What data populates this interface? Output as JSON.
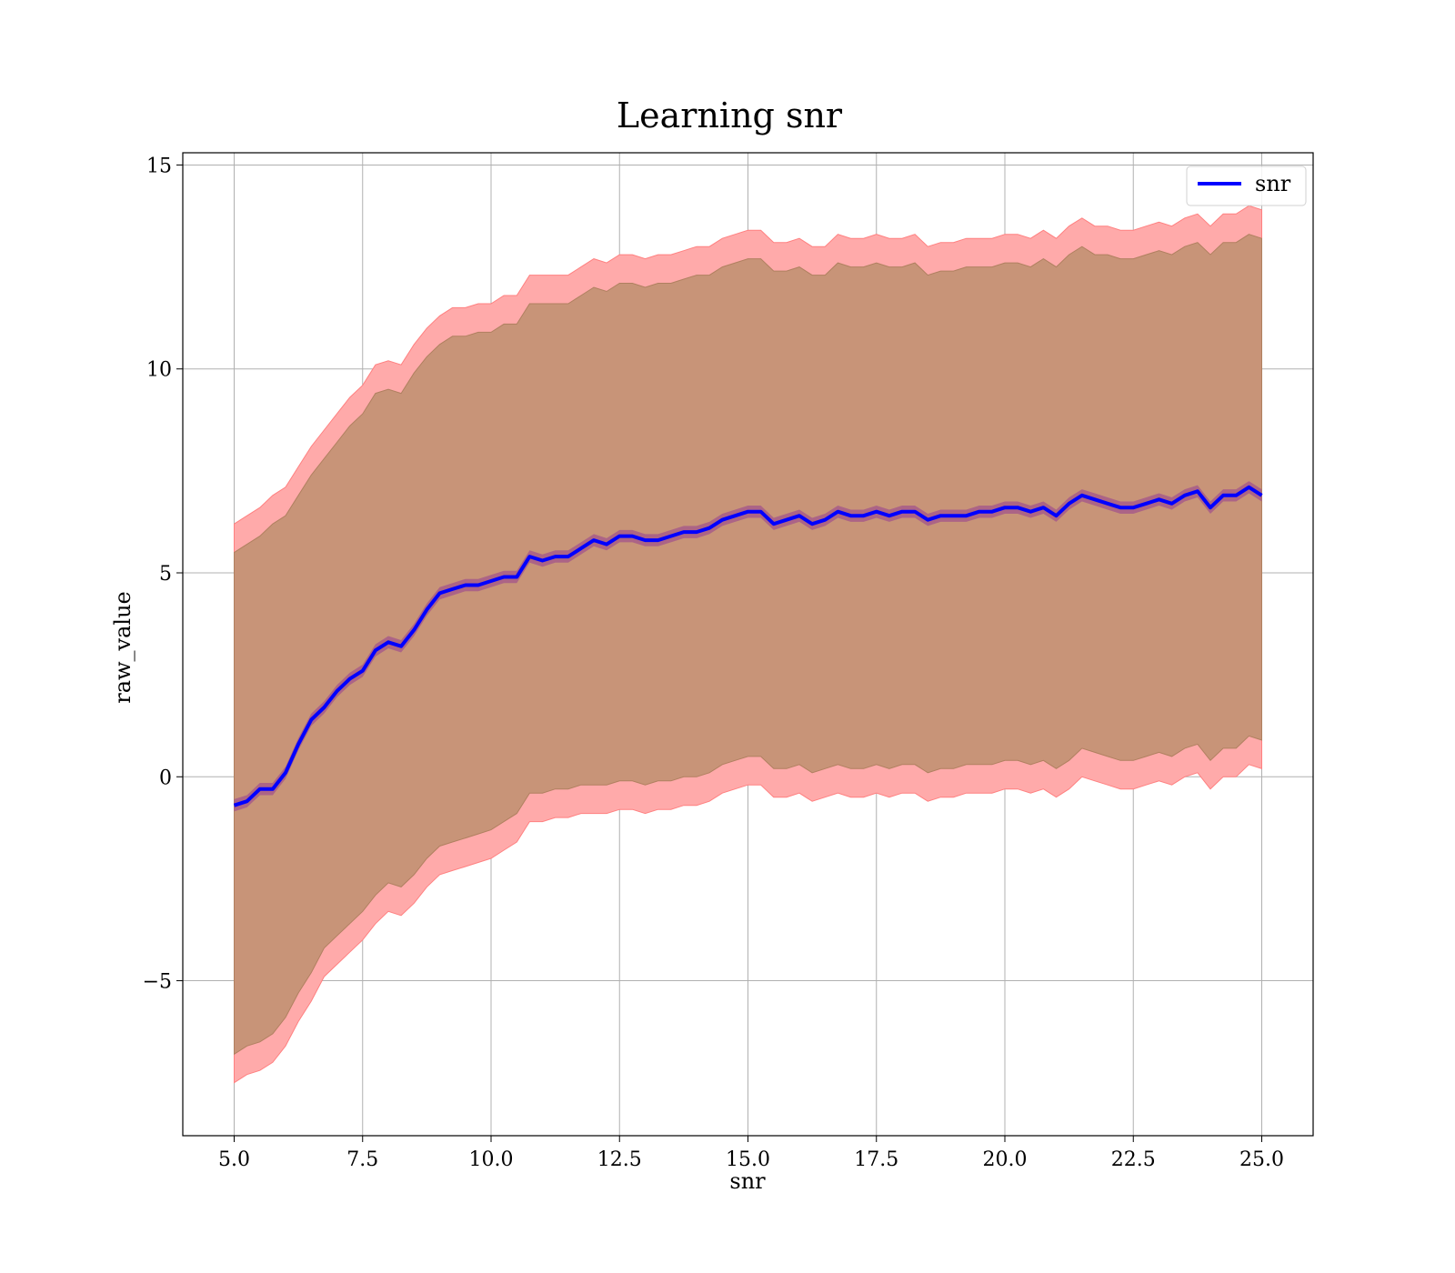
{
  "chart_data": {
    "type": "line",
    "title": "Learning snr",
    "xlabel": "snr",
    "ylabel": "raw_value",
    "xlim": [
      4.0,
      26.0
    ],
    "ylim": [
      -8.8,
      15.3
    ],
    "x_ticks": [
      5.0,
      7.5,
      10.0,
      12.5,
      15.0,
      17.5,
      20.0,
      22.5,
      25.0
    ],
    "x_tick_labels": [
      "5.0",
      "7.5",
      "10.0",
      "12.5",
      "15.0",
      "17.5",
      "20.0",
      "22.5",
      "25.0"
    ],
    "y_ticks": [
      -5,
      0,
      5,
      10,
      15
    ],
    "y_tick_labels": [
      "−5",
      "0",
      "5",
      "10",
      "15"
    ],
    "grid": true,
    "legend": {
      "position": "top-right",
      "entries": [
        {
          "name": "snr",
          "color": "#0000ff"
        }
      ]
    },
    "colors": {
      "line": "#0000ff",
      "outer_band": "#ffaaaa",
      "inner_band": "#c89478",
      "line_band": "#a0508c"
    },
    "x": [
      5.0,
      5.25,
      5.5,
      5.75,
      6.0,
      6.25,
      6.5,
      6.75,
      7.0,
      7.25,
      7.5,
      7.75,
      8.0,
      8.25,
      8.5,
      8.75,
      9.0,
      9.25,
      9.5,
      9.75,
      10.0,
      10.25,
      10.5,
      10.75,
      11.0,
      11.25,
      11.5,
      11.75,
      12.0,
      12.25,
      12.5,
      12.75,
      13.0,
      13.25,
      13.5,
      13.75,
      14.0,
      14.25,
      14.5,
      14.75,
      15.0,
      15.25,
      15.5,
      15.75,
      16.0,
      16.25,
      16.5,
      16.75,
      17.0,
      17.25,
      17.5,
      17.75,
      18.0,
      18.25,
      18.5,
      18.75,
      19.0,
      19.25,
      19.5,
      19.75,
      20.0,
      20.25,
      20.5,
      20.75,
      21.0,
      21.25,
      21.5,
      21.75,
      22.0,
      22.25,
      22.5,
      22.75,
      23.0,
      23.25,
      23.5,
      23.75,
      24.0,
      24.25,
      24.5,
      24.75,
      25.0
    ],
    "series": [
      {
        "name": "snr",
        "values": [
          -0.7,
          -0.6,
          -0.3,
          -0.3,
          0.1,
          0.8,
          1.4,
          1.7,
          2.1,
          2.4,
          2.6,
          3.1,
          3.3,
          3.2,
          3.6,
          4.1,
          4.5,
          4.6,
          4.7,
          4.7,
          4.8,
          4.9,
          4.9,
          5.4,
          5.3,
          5.4,
          5.4,
          5.6,
          5.8,
          5.7,
          5.9,
          5.9,
          5.8,
          5.8,
          5.9,
          6.0,
          6.0,
          6.1,
          6.3,
          6.4,
          6.5,
          6.5,
          6.2,
          6.3,
          6.4,
          6.2,
          6.3,
          6.5,
          6.4,
          6.4,
          6.5,
          6.4,
          6.5,
          6.5,
          6.3,
          6.4,
          6.4,
          6.4,
          6.5,
          6.5,
          6.6,
          6.6,
          6.5,
          6.6,
          6.4,
          6.7,
          6.9,
          6.8,
          6.7,
          6.6,
          6.6,
          6.7,
          6.8,
          6.7,
          6.9,
          7.0,
          6.6,
          6.9,
          6.9,
          7.1,
          6.9
        ],
        "band_lower": [
          -7.5,
          -7.3,
          -7.2,
          -7.0,
          -6.6,
          -6.0,
          -5.5,
          -4.9,
          -4.6,
          -4.3,
          -4.0,
          -3.6,
          -3.3,
          -3.4,
          -3.1,
          -2.7,
          -2.4,
          -2.3,
          -2.2,
          -2.1,
          -2.0,
          -1.8,
          -1.6,
          -1.1,
          -1.1,
          -1.0,
          -1.0,
          -0.9,
          -0.9,
          -0.9,
          -0.8,
          -0.8,
          -0.9,
          -0.8,
          -0.8,
          -0.7,
          -0.7,
          -0.6,
          -0.4,
          -0.3,
          -0.2,
          -0.2,
          -0.5,
          -0.5,
          -0.4,
          -0.6,
          -0.5,
          -0.4,
          -0.5,
          -0.5,
          -0.4,
          -0.5,
          -0.4,
          -0.4,
          -0.6,
          -0.5,
          -0.5,
          -0.4,
          -0.4,
          -0.4,
          -0.3,
          -0.3,
          -0.4,
          -0.3,
          -0.5,
          -0.3,
          0.0,
          -0.1,
          -0.2,
          -0.3,
          -0.3,
          -0.2,
          -0.1,
          -0.2,
          0.0,
          0.1,
          -0.3,
          0.0,
          0.0,
          0.3,
          0.2
        ],
        "band_upper": [
          6.2,
          6.4,
          6.6,
          6.9,
          7.1,
          7.6,
          8.1,
          8.5,
          8.9,
          9.3,
          9.6,
          10.1,
          10.2,
          10.1,
          10.6,
          11.0,
          11.3,
          11.5,
          11.5,
          11.6,
          11.6,
          11.8,
          11.8,
          12.3,
          12.3,
          12.3,
          12.3,
          12.5,
          12.7,
          12.6,
          12.8,
          12.8,
          12.7,
          12.8,
          12.8,
          12.9,
          13.0,
          13.0,
          13.2,
          13.3,
          13.4,
          13.4,
          13.1,
          13.1,
          13.2,
          13.0,
          13.0,
          13.3,
          13.2,
          13.2,
          13.3,
          13.2,
          13.2,
          13.3,
          13.0,
          13.1,
          13.1,
          13.2,
          13.2,
          13.2,
          13.3,
          13.3,
          13.2,
          13.4,
          13.2,
          13.5,
          13.7,
          13.5,
          13.5,
          13.4,
          13.4,
          13.5,
          13.6,
          13.5,
          13.7,
          13.8,
          13.5,
          13.8,
          13.8,
          14.0,
          13.9
        ],
        "inner_lower": [
          -6.8,
          -6.6,
          -6.5,
          -6.3,
          -5.9,
          -5.3,
          -4.8,
          -4.2,
          -3.9,
          -3.6,
          -3.3,
          -2.9,
          -2.6,
          -2.7,
          -2.4,
          -2.0,
          -1.7,
          -1.6,
          -1.5,
          -1.4,
          -1.3,
          -1.1,
          -0.9,
          -0.4,
          -0.4,
          -0.3,
          -0.3,
          -0.2,
          -0.2,
          -0.2,
          -0.1,
          -0.1,
          -0.2,
          -0.1,
          -0.1,
          0.0,
          0.0,
          0.1,
          0.3,
          0.4,
          0.5,
          0.5,
          0.2,
          0.2,
          0.3,
          0.1,
          0.2,
          0.3,
          0.2,
          0.2,
          0.3,
          0.2,
          0.3,
          0.3,
          0.1,
          0.2,
          0.2,
          0.3,
          0.3,
          0.3,
          0.4,
          0.4,
          0.3,
          0.4,
          0.2,
          0.4,
          0.7,
          0.6,
          0.5,
          0.4,
          0.4,
          0.5,
          0.6,
          0.5,
          0.7,
          0.8,
          0.4,
          0.7,
          0.7,
          1.0,
          0.9
        ],
        "inner_upper": [
          5.5,
          5.7,
          5.9,
          6.2,
          6.4,
          6.9,
          7.4,
          7.8,
          8.2,
          8.6,
          8.9,
          9.4,
          9.5,
          9.4,
          9.9,
          10.3,
          10.6,
          10.8,
          10.8,
          10.9,
          10.9,
          11.1,
          11.1,
          11.6,
          11.6,
          11.6,
          11.6,
          11.8,
          12.0,
          11.9,
          12.1,
          12.1,
          12.0,
          12.1,
          12.1,
          12.2,
          12.3,
          12.3,
          12.5,
          12.6,
          12.7,
          12.7,
          12.4,
          12.4,
          12.5,
          12.3,
          12.3,
          12.6,
          12.5,
          12.5,
          12.6,
          12.5,
          12.5,
          12.6,
          12.3,
          12.4,
          12.4,
          12.5,
          12.5,
          12.5,
          12.6,
          12.6,
          12.5,
          12.7,
          12.5,
          12.8,
          13.0,
          12.8,
          12.8,
          12.7,
          12.7,
          12.8,
          12.9,
          12.8,
          13.0,
          13.1,
          12.8,
          13.1,
          13.1,
          13.3,
          13.2
        ]
      }
    ]
  }
}
